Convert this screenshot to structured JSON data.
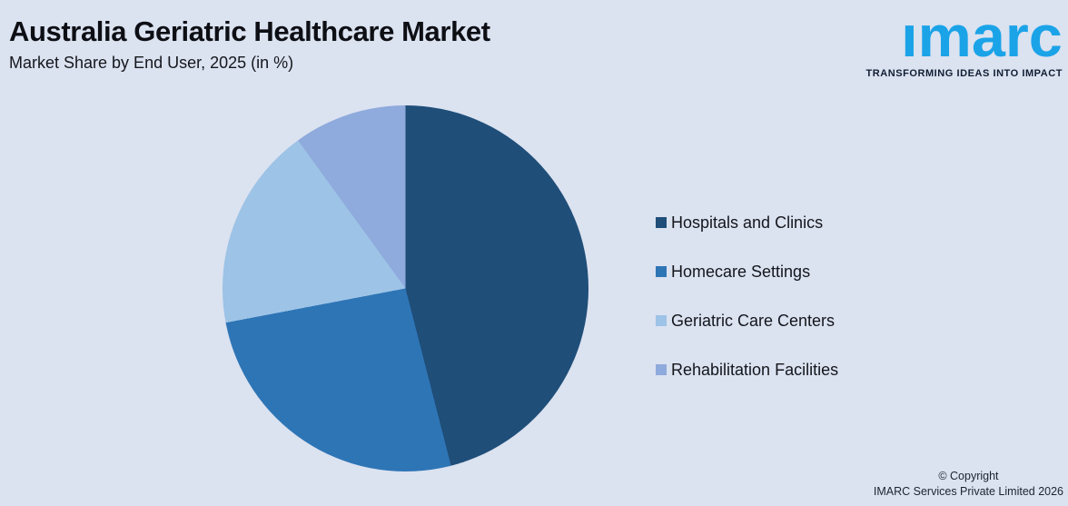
{
  "header": {
    "title": "Australia Geriatric Healthcare Market",
    "subtitle": "Market Share by End User, 2025 (in %)"
  },
  "logo": {
    "wordmark": "imarc",
    "tagline": "TRANSFORMING IDEAS INTO IMPACT",
    "brand_blue": "#1BA3E8",
    "tagline_color": "#0f1e33"
  },
  "chart_data": {
    "type": "pie",
    "title": "Australia Geriatric Healthcare Market",
    "subtitle": "Market Share by End User, 2025 (in %)",
    "unit": "%",
    "categories": [
      "Hospitals and Clinics",
      "Homecare Settings",
      "Geriatric Care Centers",
      "Rehabilitation Facilities"
    ],
    "values": [
      46,
      26,
      18,
      10
    ],
    "colors": [
      "#1F4E79",
      "#2E75B6",
      "#9DC3E6",
      "#8FAADC"
    ],
    "start_angle_deg": 0,
    "direction": "clockwise",
    "legend_position": "right",
    "data_labels": false
  },
  "legend": {
    "items": [
      {
        "label": "Hospitals and Clinics",
        "color": "#1F4E79"
      },
      {
        "label": "Homecare Settings",
        "color": "#2E75B6"
      },
      {
        "label": "Geriatric Care Centers",
        "color": "#9DC3E6"
      },
      {
        "label": "Rehabilitation Facilities",
        "color": "#8FAADC"
      }
    ]
  },
  "footer": {
    "copyright_line1": "© Copyright",
    "copyright_line2": "IMARC Services Private Limited 2026"
  },
  "colors": {
    "background": "#DBE2F0"
  }
}
